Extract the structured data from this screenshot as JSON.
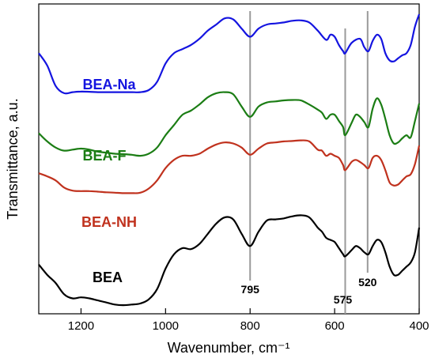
{
  "chart_data": {
    "type": "line",
    "title": "",
    "xlabel": "Wavenumber, cm⁻¹",
    "ylabel": "Transmittance, a.u.",
    "xlim": [
      1300,
      400
    ],
    "x_reversed": true,
    "xticks": [
      1200,
      1000,
      800,
      600,
      400
    ],
    "yticks_visible": false,
    "grid": false,
    "legend": "none (series labelled on the plot)",
    "markers": [
      {
        "label": "795",
        "x": 800
      },
      {
        "label": "575",
        "x": 575
      },
      {
        "label": "520",
        "x": 522
      }
    ],
    "series": [
      {
        "name": "BEA-Na",
        "color": "#1414e0",
        "x": [
          1300,
          1280,
          1260,
          1240,
          1220,
          1200,
          1180,
          1160,
          1140,
          1120,
          1100,
          1080,
          1060,
          1040,
          1020,
          1000,
          980,
          960,
          940,
          920,
          900,
          880,
          860,
          840,
          820,
          800,
          780,
          760,
          740,
          720,
          700,
          680,
          660,
          640,
          620,
          610,
          600,
          590,
          580,
          575,
          560,
          540,
          530,
          520,
          510,
          500,
          490,
          480,
          470,
          460,
          450,
          440,
          430,
          420,
          410,
          400
        ],
        "values": [
          8.2,
          7.6,
          6.6,
          6.25,
          6.3,
          6.33,
          6.32,
          6.3,
          6.3,
          6.3,
          6.3,
          6.3,
          6.3,
          6.4,
          6.8,
          7.7,
          8.2,
          8.4,
          8.6,
          8.9,
          9.3,
          9.6,
          9.9,
          9.85,
          9.4,
          9.0,
          9.4,
          9.6,
          9.65,
          9.7,
          9.78,
          9.8,
          9.7,
          9.3,
          8.85,
          9.1,
          9.0,
          8.6,
          8.3,
          8.2,
          8.7,
          8.9,
          8.5,
          8.3,
          8.8,
          9.1,
          8.9,
          8.2,
          7.85,
          7.8,
          7.95,
          8.1,
          8.2,
          8.6,
          9.5,
          10.1
        ]
      },
      {
        "name": "BEA-F",
        "color": "#1b7d14",
        "x": [
          1300,
          1280,
          1260,
          1240,
          1220,
          1200,
          1180,
          1160,
          1140,
          1120,
          1100,
          1080,
          1060,
          1040,
          1020,
          1000,
          980,
          960,
          940,
          920,
          900,
          880,
          860,
          840,
          820,
          800,
          780,
          760,
          740,
          720,
          700,
          680,
          660,
          640,
          630,
          620,
          610,
          600,
          590,
          580,
          575,
          560,
          550,
          540,
          530,
          520,
          510,
          500,
          490,
          480,
          470,
          460,
          450,
          440,
          430,
          420,
          410,
          400
        ],
        "values": [
          4.3,
          3.9,
          3.6,
          3.45,
          3.5,
          3.55,
          3.5,
          3.4,
          3.35,
          3.3,
          3.28,
          3.25,
          3.2,
          3.3,
          3.6,
          4.2,
          4.7,
          5.2,
          5.4,
          5.7,
          6.05,
          6.25,
          6.3,
          6.2,
          5.6,
          5.1,
          5.6,
          5.8,
          5.85,
          5.9,
          5.92,
          5.9,
          5.7,
          5.45,
          5.3,
          5.0,
          5.2,
          5.2,
          4.9,
          4.6,
          4.2,
          4.8,
          5.2,
          5.1,
          4.85,
          4.6,
          5.5,
          6.0,
          5.7,
          5.0,
          4.2,
          3.8,
          3.85,
          4.05,
          4.2,
          4.1,
          4.9,
          5.75
        ]
      },
      {
        "name": "BEA-NH",
        "color": "#c0321e",
        "x": [
          1300,
          1280,
          1260,
          1240,
          1220,
          1200,
          1180,
          1160,
          1140,
          1120,
          1100,
          1080,
          1060,
          1040,
          1020,
          1000,
          980,
          960,
          940,
          920,
          900,
          880,
          860,
          840,
          820,
          800,
          780,
          760,
          740,
          720,
          700,
          680,
          660,
          640,
          630,
          620,
          610,
          600,
          590,
          580,
          575,
          560,
          550,
          540,
          530,
          520,
          510,
          500,
          490,
          480,
          470,
          460,
          450,
          440,
          430,
          420,
          410,
          400
        ],
        "values": [
          2.35,
          2.2,
          2.0,
          1.65,
          1.5,
          1.48,
          1.48,
          1.45,
          1.42,
          1.4,
          1.38,
          1.38,
          1.4,
          1.6,
          2.0,
          2.6,
          3.0,
          3.2,
          3.2,
          3.3,
          3.55,
          3.75,
          3.85,
          3.8,
          3.6,
          3.25,
          3.55,
          3.8,
          3.85,
          3.9,
          3.92,
          3.95,
          3.9,
          3.5,
          3.45,
          3.2,
          3.3,
          3.2,
          3.1,
          2.75,
          2.5,
          2.9,
          3.0,
          2.9,
          2.75,
          2.6,
          3.1,
          3.2,
          3.0,
          2.5,
          1.9,
          1.75,
          1.8,
          2.0,
          2.2,
          2.3,
          2.8,
          3.7
        ]
      },
      {
        "name": "BEA",
        "color": "#000000",
        "x": [
          1300,
          1280,
          1260,
          1240,
          1220,
          1200,
          1180,
          1160,
          1140,
          1120,
          1100,
          1080,
          1060,
          1040,
          1020,
          1000,
          980,
          960,
          940,
          920,
          900,
          880,
          860,
          840,
          820,
          800,
          780,
          760,
          740,
          720,
          700,
          680,
          660,
          640,
          630,
          620,
          610,
          600,
          590,
          580,
          575,
          560,
          550,
          540,
          530,
          520,
          510,
          500,
          490,
          480,
          470,
          460,
          450,
          440,
          430,
          420,
          410,
          400
        ],
        "values": [
          -2.1,
          -2.6,
          -3.0,
          -3.55,
          -3.75,
          -3.7,
          -3.75,
          -3.85,
          -3.95,
          -4.05,
          -4.08,
          -4.05,
          -4.0,
          -3.8,
          -3.3,
          -2.3,
          -1.6,
          -1.3,
          -1.35,
          -1.1,
          -0.6,
          -0.1,
          0.2,
          0.1,
          -0.6,
          -1.2,
          -0.5,
          0.05,
          0.1,
          0.15,
          0.25,
          0.3,
          0.2,
          -0.3,
          -0.5,
          -0.8,
          -0.9,
          -1.0,
          -1.3,
          -1.6,
          -1.7,
          -1.4,
          -1.2,
          -1.3,
          -1.5,
          -1.6,
          -1.2,
          -0.9,
          -1.0,
          -1.5,
          -2.2,
          -2.6,
          -2.6,
          -2.4,
          -2.2,
          -2.0,
          -1.5,
          -0.3
        ]
      }
    ]
  }
}
